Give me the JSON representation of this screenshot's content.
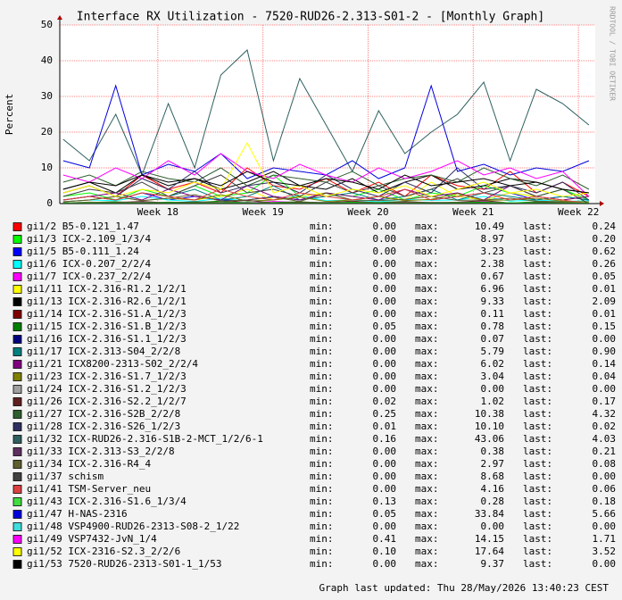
{
  "chart_data": {
    "type": "line",
    "title": "Interface RX Utilization - 7520-RUD26-2.313-S01-2 - [Monthly Graph]",
    "y_label": "Percent",
    "watermark": "RRDTOOL / TOBI OETIKER",
    "footer": "Graph last updated: Thu 28/May/2026 13:40:23 CEST",
    "legend_labels": {
      "min": "min:",
      "max": "max:",
      "last": "last:"
    },
    "grid": true,
    "ylim": [
      0,
      50
    ],
    "yticks": [
      0,
      10,
      20,
      30,
      40,
      50
    ],
    "xlim": [
      17.068,
      22.16
    ],
    "xticks": [
      {
        "value": 18,
        "label": "Week 18"
      },
      {
        "value": 19,
        "label": "Week 19"
      },
      {
        "value": 20,
        "label": "Week 20"
      },
      {
        "value": 21,
        "label": "Week 21"
      },
      {
        "value": 22,
        "label": "Week 22"
      }
    ],
    "x": [
      17.1,
      17.35,
      17.6,
      17.85,
      18.1,
      18.35,
      18.6,
      18.85,
      19.1,
      19.35,
      19.6,
      19.85,
      20.1,
      20.35,
      20.6,
      20.85,
      21.1,
      21.35,
      21.6,
      21.85,
      22.1
    ],
    "series": [
      {
        "name": "gi1/2 B5-0.121_1.47",
        "color": "#ff0000",
        "min": "0.00",
        "max": "10.49",
        "last": "0.24",
        "values": [
          3,
          5,
          2,
          8,
          4,
          6,
          3,
          10,
          5,
          4,
          7,
          3,
          6,
          2,
          8,
          5,
          4,
          9,
          3,
          6,
          2
        ]
      },
      {
        "name": "gi1/3 ICX-2.109_1/3/4",
        "color": "#00ff00",
        "min": "0.00",
        "max": "8.97",
        "last": "0.20",
        "values": [
          2,
          3,
          1,
          4,
          2,
          5,
          2,
          3,
          8,
          2,
          3,
          2,
          4,
          1,
          3,
          2,
          5,
          3,
          2,
          4,
          1
        ]
      },
      {
        "name": "gi1/5 B5-0.111_1.24",
        "color": "#0000ff",
        "min": "0.00",
        "max": "3.23",
        "last": "0.62",
        "values": [
          1,
          2,
          1,
          3,
          1,
          2,
          1,
          1,
          2,
          1,
          3,
          1,
          2,
          1,
          1,
          2,
          1,
          3,
          1,
          2,
          1
        ]
      },
      {
        "name": "gi1/6 ICX-0.207_2/2/4",
        "color": "#00ffff",
        "min": "0.00",
        "max": "2.38",
        "last": "0.26",
        "values": [
          0.5,
          1,
          0.8,
          2,
          1,
          0.6,
          1.5,
          0.7,
          1,
          2.2,
          0.8,
          1,
          0.5,
          1.2,
          0.9,
          1,
          2,
          0.7,
          1,
          0.6,
          0.8
        ]
      },
      {
        "name": "gi1/7 ICX-0.237_2/2/4",
        "color": "#ff00ff",
        "min": "0.00",
        "max": "0.67",
        "last": "0.05",
        "values": [
          0.2,
          0.3,
          0.1,
          0.5,
          0.2,
          0.3,
          0.4,
          0.2,
          0.6,
          0.3,
          0.2,
          0.3,
          0.1,
          0.4,
          0.2,
          0.3,
          0.5,
          0.2,
          0.3,
          0.2,
          0.1
        ]
      },
      {
        "name": "gi1/11 ICX-2.316-R1.2_1/2/1",
        "color": "#ffff00",
        "min": "0.00",
        "max": "6.96",
        "last": "0.01",
        "values": [
          1,
          2,
          1,
          3,
          2,
          1,
          2,
          4,
          1,
          2,
          3,
          1,
          2,
          1,
          6,
          2,
          1,
          3,
          2,
          1,
          2
        ]
      },
      {
        "name": "gi1/13 ICX-2.316-R2.6_1/2/1",
        "color": "#000000",
        "min": "0.00",
        "max": "9.33",
        "last": "2.09",
        "values": [
          4,
          6,
          3,
          8,
          5,
          7,
          4,
          6,
          9,
          5,
          4,
          7,
          3,
          6,
          8,
          4,
          5,
          7,
          6,
          4,
          3
        ]
      },
      {
        "name": "gi1/14 ICX-2.316-S1.A_1/2/3",
        "color": "#800000",
        "min": "0.00",
        "max": "0.11",
        "last": "0.01",
        "values": [
          0.02,
          0.05,
          0.03,
          0.08,
          0.04,
          0.06,
          0.03,
          0.1,
          0.05,
          0.04,
          0.07,
          0.03,
          0.06,
          0.02,
          0.08,
          0.05,
          0.04,
          0.09,
          0.03,
          0.06,
          0.01
        ]
      },
      {
        "name": "gi1/15 ICX-2.316-S1.B_1/2/3",
        "color": "#008000",
        "min": "0.05",
        "max": "0.78",
        "last": "0.15",
        "values": [
          0.2,
          0.3,
          0.5,
          0.2,
          0.4,
          0.3,
          0.7,
          0.2,
          0.3,
          0.5,
          0.2,
          0.4,
          0.3,
          0.6,
          0.2,
          0.3,
          0.4,
          0.2,
          0.5,
          0.3,
          0.2
        ]
      },
      {
        "name": "gi1/16 ICX-2.316-S1.1_1/2/3",
        "color": "#000080",
        "min": "0.00",
        "max": "0.07",
        "last": "0.00",
        "values": [
          0.01,
          0.02,
          0.03,
          0.02,
          0.05,
          0.02,
          0.01,
          0.03,
          0.06,
          0.02,
          0.03,
          0.01,
          0.02,
          0.04,
          0.02,
          0.03,
          0.01,
          0.05,
          0.02,
          0.03,
          0.01
        ]
      },
      {
        "name": "gi1/17 ICX-2.313-S04_2/2/8",
        "color": "#008080",
        "min": "0.00",
        "max": "5.79",
        "last": "0.90",
        "values": [
          1,
          2,
          1,
          3,
          2,
          4,
          1,
          2,
          5,
          1,
          2,
          3,
          1,
          2,
          4,
          1,
          3,
          2,
          1,
          2,
          1
        ]
      },
      {
        "name": "gi1/21 ICX8200-2313-S02_2/2/4",
        "color": "#800080",
        "min": "0.00",
        "max": "6.02",
        "last": "0.14",
        "values": [
          1,
          2,
          3,
          1,
          4,
          2,
          1,
          5,
          2,
          1,
          3,
          2,
          1,
          4,
          2,
          3,
          1,
          5,
          2,
          1,
          2
        ]
      },
      {
        "name": "gi1/23 ICX-2.316-S1.7_1/2/3",
        "color": "#808000",
        "min": "0.00",
        "max": "3.04",
        "last": "0.04",
        "values": [
          0.5,
          1,
          2,
          0.8,
          1.5,
          1,
          2.5,
          0.7,
          1,
          1.8,
          0.6,
          1,
          2,
          0.8,
          1.2,
          2.8,
          0.9,
          1,
          1.5,
          0.7,
          0.5
        ]
      },
      {
        "name": "gi1/24 ICX-2.316-S1.2_1/2/3",
        "color": "#a0a0a0",
        "min": "0.00",
        "max": "0.00",
        "last": "0.00",
        "values": [
          0,
          0,
          0,
          0,
          0,
          0,
          0,
          0,
          0,
          0,
          0,
          0,
          0,
          0,
          0,
          0,
          0,
          0,
          0,
          0,
          0
        ]
      },
      {
        "name": "gi1/26 ICX-2.316-S2.2_1/2/7",
        "color": "#602020",
        "min": "0.02",
        "max": "1.02",
        "last": "0.17",
        "values": [
          0.2,
          0.4,
          0.3,
          0.6,
          0.2,
          0.5,
          0.3,
          0.9,
          0.2,
          0.4,
          0.3,
          0.7,
          0.2,
          0.5,
          0.3,
          0.4,
          0.8,
          0.2,
          0.3,
          0.4,
          0.2
        ]
      },
      {
        "name": "gi1/27 ICX-2.316-S2B_2/2/8",
        "color": "#2f5f2f",
        "min": "0.25",
        "max": "10.38",
        "last": "4.32",
        "values": [
          6,
          8,
          5,
          9,
          7,
          6,
          10,
          5,
          8,
          7,
          6,
          9,
          5,
          7,
          8,
          6,
          10,
          7,
          5,
          8,
          4
        ]
      },
      {
        "name": "gi1/28 ICX-2.316-S26_1/2/3",
        "color": "#2f2f5f",
        "min": "0.01",
        "max": "10.10",
        "last": "0.02",
        "values": [
          3,
          5,
          2,
          7,
          4,
          9,
          3,
          5,
          6,
          3,
          8,
          4,
          2,
          6,
          3,
          10,
          4,
          5,
          3,
          6,
          1
        ]
      },
      {
        "name": "gi1/32 ICX-RUD26-2.316-S1B-2-MCT_1/2/6-1",
        "color": "#2f5f5f",
        "min": "0.16",
        "max": "43.06",
        "last": "4.03",
        "values": [
          18,
          12,
          25,
          8,
          28,
          10,
          36,
          43,
          12,
          35,
          22,
          9,
          26,
          14,
          20,
          25,
          34,
          12,
          32,
          28,
          22
        ]
      },
      {
        "name": "gi1/33 ICX-2.313-S3_2/2/8",
        "color": "#5f2f5f",
        "min": "0.00",
        "max": "0.38",
        "last": "0.21",
        "values": [
          0.1,
          0.2,
          0.1,
          0.3,
          0.2,
          0.1,
          0.2,
          0.35,
          0.1,
          0.2,
          0.3,
          0.1,
          0.2,
          0.1,
          0.3,
          0.2,
          0.1,
          0.25,
          0.2,
          0.1,
          0.2
        ]
      },
      {
        "name": "gi1/34 ICX-2.316-R4_4",
        "color": "#5f5f2f",
        "min": "0.00",
        "max": "2.97",
        "last": "0.08",
        "values": [
          0.5,
          1,
          2,
          0.8,
          1.5,
          2.5,
          0.7,
          1,
          1.8,
          0.6,
          2.9,
          1,
          0.8,
          1.2,
          2,
          0.9,
          1,
          1.5,
          0.7,
          0.5,
          0.1
        ]
      },
      {
        "name": "gi1/37 schism",
        "color": "#404040",
        "min": "0.00",
        "max": "8.68",
        "last": "0.00",
        "values": [
          2,
          4,
          3,
          6,
          2,
          5,
          8,
          3,
          4,
          2,
          6,
          3,
          5,
          2,
          4,
          7,
          3,
          5,
          2,
          4,
          0
        ]
      },
      {
        "name": "gi1/41 TSM-Server_neu",
        "color": "#dd4040",
        "min": "0.00",
        "max": "4.16",
        "last": "0.06",
        "values": [
          1,
          2,
          1,
          3,
          2,
          1,
          4,
          2,
          1,
          3,
          2,
          1,
          2,
          4,
          1,
          2,
          3,
          1,
          2,
          1,
          0.06
        ]
      },
      {
        "name": "gi1/43 ICX-2.316-S1.6_1/3/4",
        "color": "#40dd40",
        "min": "0.13",
        "max": "0.28",
        "last": "0.18",
        "values": [
          0.2,
          0.25,
          0.2,
          0.22,
          0.18,
          0.2,
          0.26,
          0.2,
          0.19,
          0.21,
          0.2,
          0.24,
          0.2,
          0.18,
          0.2,
          0.22,
          0.2,
          0.27,
          0.2,
          0.19,
          0.18
        ]
      },
      {
        "name": "gi1/47 H-NAS-2316",
        "color": "#0000dd",
        "min": "0.05",
        "max": "33.84",
        "last": "5.66",
        "values": [
          12,
          10,
          33,
          8,
          11,
          9,
          14,
          7,
          10,
          9,
          8,
          12,
          7,
          10,
          33,
          9,
          11,
          8,
          10,
          9,
          12
        ]
      },
      {
        "name": "gi1/48 VSP4900-RUD26-2313-S08-2_1/22",
        "color": "#40dddd",
        "min": "0.00",
        "max": "0.00",
        "last": "0.00",
        "values": [
          0,
          0,
          0,
          0,
          0,
          0,
          0,
          0,
          0,
          0,
          0,
          0,
          0,
          0,
          0,
          0,
          0,
          0,
          0,
          0,
          0
        ]
      },
      {
        "name": "gi1/49 VSP7432-JvN_1/4",
        "color": "#ff00ff",
        "min": "0.41",
        "max": "14.15",
        "last": "1.71",
        "values": [
          8,
          6,
          10,
          7,
          12,
          8,
          14,
          9,
          7,
          11,
          8,
          6,
          10,
          7,
          9,
          12,
          8,
          10,
          7,
          9,
          2
        ]
      },
      {
        "name": "gi1/52 ICX-2316-S2.3_2/2/6",
        "color": "#ffff00",
        "min": "0.10",
        "max": "17.64",
        "last": "3.52",
        "values": [
          3,
          5,
          2,
          4,
          3,
          6,
          4,
          17,
          3,
          5,
          2,
          4,
          3,
          5,
          2,
          4,
          6,
          3,
          4,
          2,
          3
        ]
      },
      {
        "name": "gi1/53 7520-RUD26-2313-S01-1_1/53",
        "color": "#000000",
        "min": "0.00",
        "max": "9.37",
        "last": "0.00",
        "values": [
          4,
          6,
          5,
          8,
          6,
          7,
          5,
          9,
          6,
          5,
          7,
          6,
          4,
          8,
          5,
          6,
          7,
          5,
          6,
          4,
          3
        ]
      }
    ]
  }
}
